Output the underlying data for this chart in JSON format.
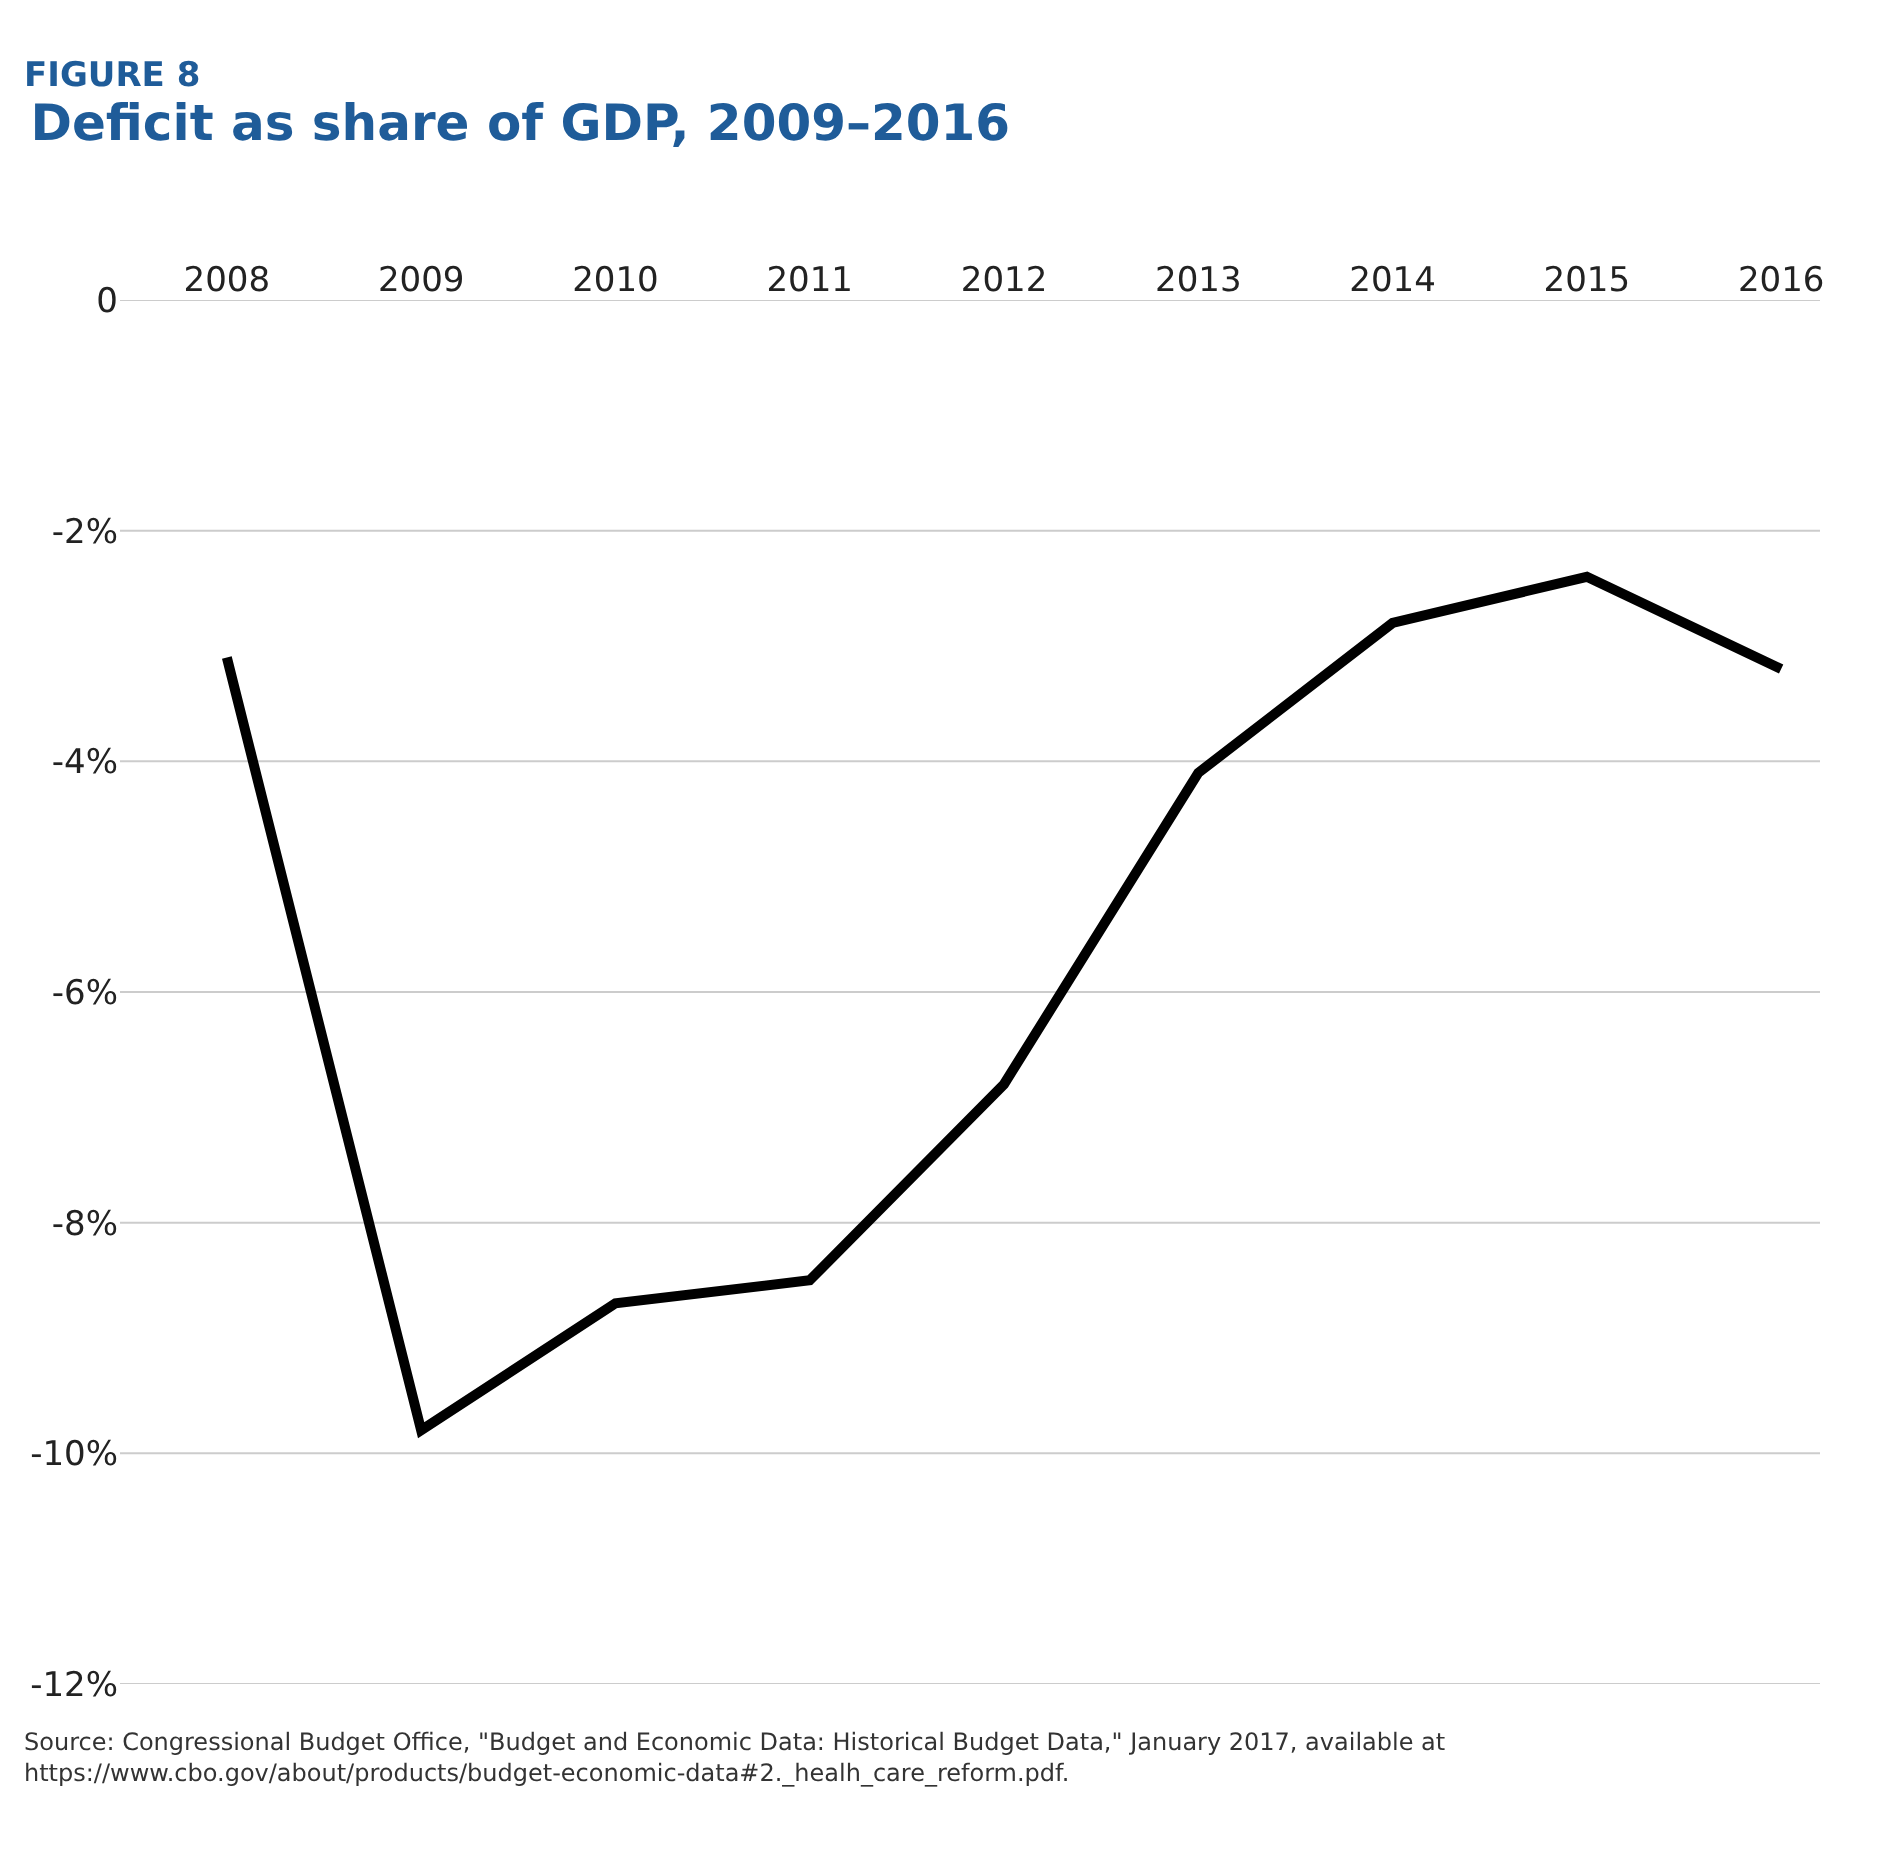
{
  "chart_data": {
    "type": "line",
    "subtitle": "FIGURE 8",
    "title": "Deficit as share of GDP, 2009–2016",
    "categories": [
      "2008",
      "2009",
      "2010",
      "2011",
      "2012",
      "2013",
      "2014",
      "2015",
      "2016"
    ],
    "series": [
      {
        "color": "#000000",
        "values": [
          -3.1,
          -9.8,
          -8.7,
          -8.5,
          -6.8,
          -4.1,
          -2.8,
          -2.4,
          -3.2
        ]
      }
    ],
    "ylim": [
      -12,
      0
    ],
    "yticks": [
      {
        "value": 0,
        "label": "0"
      },
      {
        "value": -2,
        "label": "-2%"
      },
      {
        "value": -4,
        "label": "-4%"
      },
      {
        "value": -6,
        "label": "-6%"
      },
      {
        "value": -8,
        "label": "-8%"
      },
      {
        "value": -10,
        "label": "-10%"
      },
      {
        "value": -12,
        "label": "-12%"
      }
    ],
    "grid": "y",
    "marker": "none",
    "line_style": "solid",
    "annotations": [
      "Source: Congressional Budget Office, \"Budget and Economic Data: Historical Budget Data,\" January 2017, available at https://www.cbo.gov/about/products/budget-economic-data#2._healh_care_reform.pdf."
    ]
  }
}
